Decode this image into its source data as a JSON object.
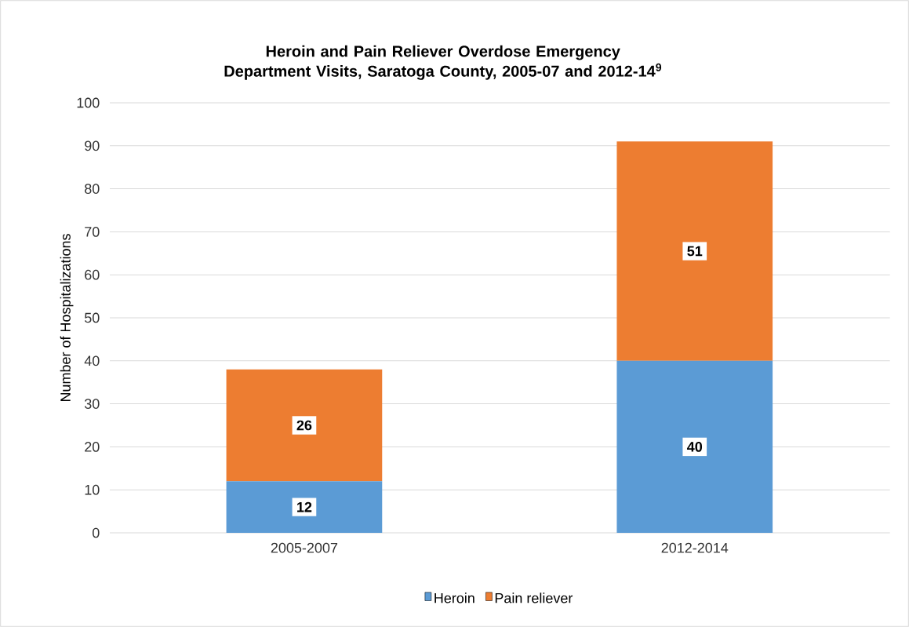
{
  "chart_data": {
    "type": "bar",
    "stacked": true,
    "title": "Heroin and Pain Reliever Overdose Emergency Department Visits, Saratoga County, 2005-07 and 2012-14$^{9}$",
    "ylabel": "Number of Hospitalizations",
    "categories": [
      "2005-2007",
      "2012-2014"
    ],
    "series": [
      {
        "name": "Heroin",
        "color": "#5b9bd5",
        "values": [
          12,
          40
        ]
      },
      {
        "name": "Pain reliever",
        "color": "#ed7d31",
        "values": [
          26,
          51
        ]
      }
    ],
    "ylim": [
      0,
      100
    ],
    "yticks": [
      0,
      10,
      20,
      30,
      40,
      50,
      60,
      70,
      80,
      90,
      100
    ],
    "grid": "y",
    "legend": "bottom",
    "data_labels": true
  }
}
